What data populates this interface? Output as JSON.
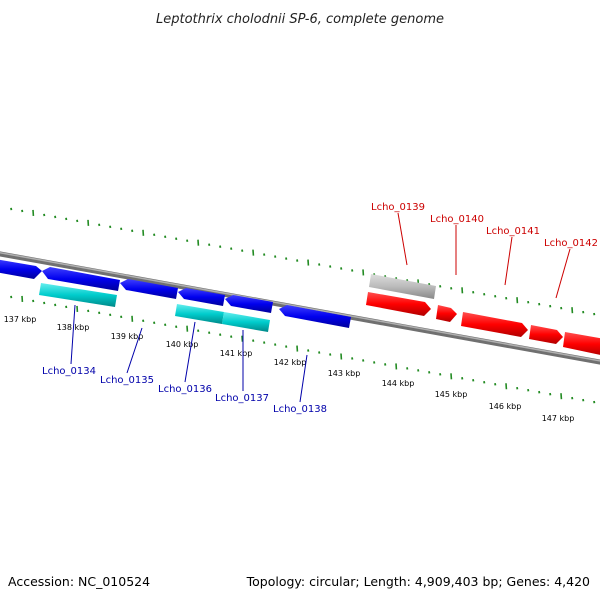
{
  "title": "Leptothrix cholodnii SP-6, complete genome",
  "footer": {
    "accession": "Accession: NC_010524",
    "summary": "Topology: circular; Length: 4,909,403 bp; Genes: 4,420"
  },
  "ticks": [
    "137 kbp",
    "138 kbp",
    "139 kbp",
    "140 kbp",
    "141 kbp",
    "142 kbp",
    "143 kbp",
    "144 kbp",
    "145 kbp",
    "146 kbp",
    "147 kbp"
  ],
  "gene_labels": {
    "forward": [
      "Lcho_0139",
      "Lcho_0140",
      "Lcho_0141",
      "Lcho_0142"
    ],
    "reverse": [
      "Lcho_0134",
      "Lcho_0135",
      "Lcho_0136",
      "Lcho_0137",
      "Lcho_0138"
    ]
  },
  "colors": {
    "forward_gene": "#ff0000",
    "reverse_gene": "#0000ee",
    "rna_gene": "#00cccc",
    "pseudo_gene": "#bbbbbb",
    "backbone": "#808080",
    "tick": "#228b22",
    "forward_label": "#cc0000",
    "reverse_label": "#0000aa"
  }
}
